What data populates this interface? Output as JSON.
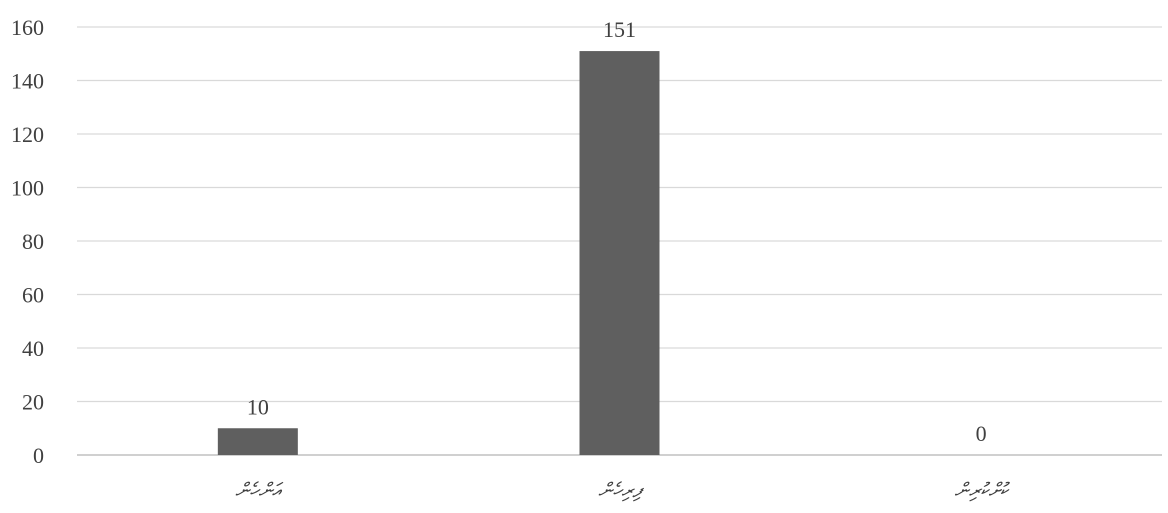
{
  "chart_data": {
    "type": "bar",
    "categories": [
      "އަންހެން",
      "ފިރިހެން",
      "ކުށްކުރިން"
    ],
    "values": [
      10,
      151,
      0
    ],
    "ylim": [
      0,
      160
    ],
    "yticks": [
      0,
      20,
      40,
      60,
      80,
      100,
      120,
      140,
      160
    ],
    "title": "",
    "xlabel": "",
    "ylabel": "",
    "grid": true,
    "legend": "none",
    "bar_color": "#5f5f5f",
    "gridline_color": "#d9d9d9",
    "text_color": "#404040"
  }
}
